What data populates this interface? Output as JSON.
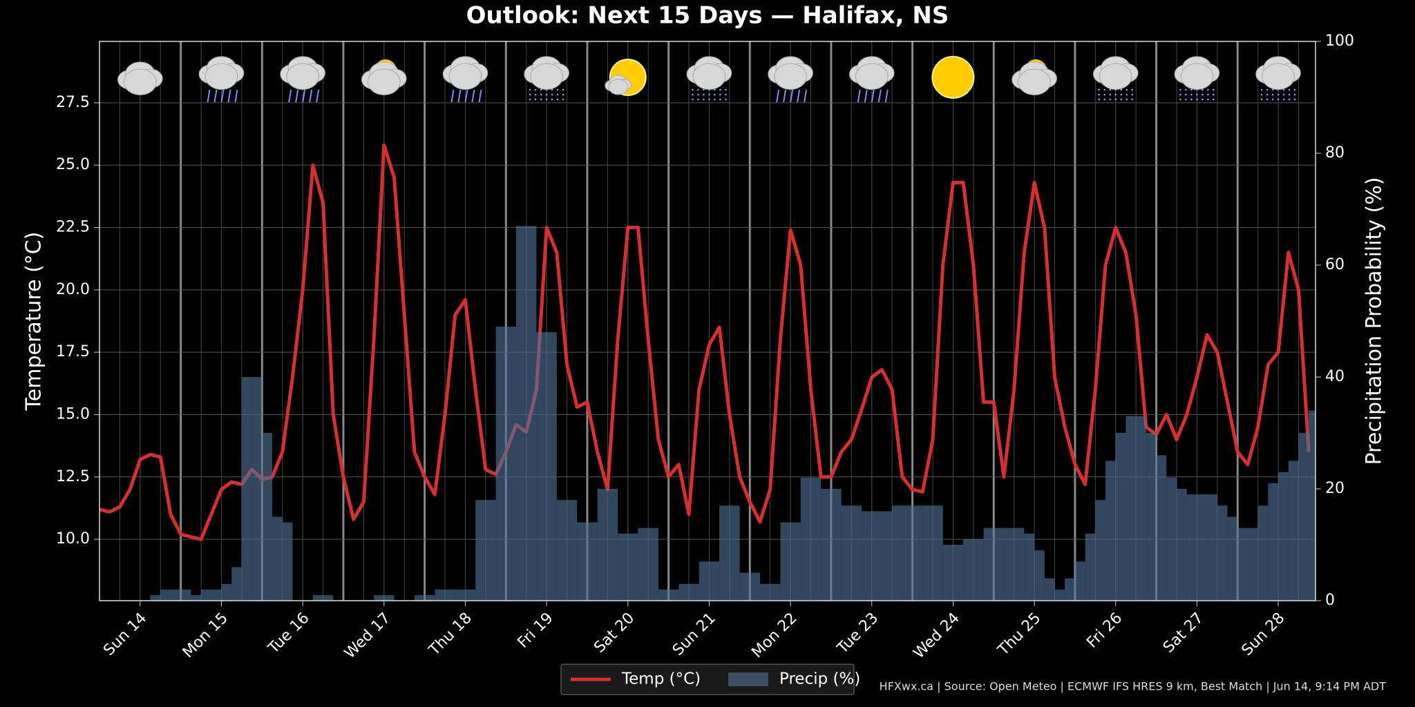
{
  "chart_data": {
    "type": "line",
    "title": "Outlook: Next 15 Days — Halifax, NS",
    "y_label": "Temperature (°C)",
    "y2_label": "Precipitation Probability (%)",
    "note": "HFXwx.ca | Source: Open Meteo | ECMWF IFS HRES 9 km, Best Match | Jun 14, 9:14 PM ADT",
    "legend": "bottom",
    "grid": true,
    "xlim": [
      0,
      359
    ],
    "xticks": [
      {
        "value": 12,
        "label": "Sun 14"
      },
      {
        "value": 36,
        "label": "Mon 15"
      },
      {
        "value": 60,
        "label": "Tue 16"
      },
      {
        "value": 84,
        "label": "Wed 17"
      },
      {
        "value": 108,
        "label": "Thu 18"
      },
      {
        "value": 132,
        "label": "Fri 19"
      },
      {
        "value": 156,
        "label": "Sat 20"
      },
      {
        "value": 180,
        "label": "Sun 21"
      },
      {
        "value": 204,
        "label": "Mon 22"
      },
      {
        "value": 228,
        "label": "Tue 23"
      },
      {
        "value": 252,
        "label": "Wed 24"
      },
      {
        "value": 276,
        "label": "Thu 25"
      },
      {
        "value": 300,
        "label": "Fri 26"
      },
      {
        "value": 324,
        "label": "Sat 27"
      },
      {
        "value": 348,
        "label": "Sun 28"
      }
    ],
    "ylim": [
      7.54,
      29.96
    ],
    "yticks": [
      {
        "value": 10,
        "label": "10.0"
      },
      12.5,
      {
        "value": 15,
        "label": "15.0"
      },
      17.5,
      {
        "value": 20,
        "label": "20.0"
      },
      22.5,
      {
        "value": 25,
        "label": "25.0"
      },
      27.5
    ],
    "y2lim": [
      0,
      100
    ],
    "y2ticks": [
      0,
      20,
      40,
      60,
      80,
      100
    ],
    "x": [
      0,
      3,
      6,
      9,
      12,
      15,
      18,
      21,
      24,
      27,
      30,
      33,
      36,
      39,
      42,
      45,
      48,
      51,
      54,
      57,
      60,
      63,
      66,
      69,
      72,
      75,
      78,
      81,
      84,
      87,
      90,
      93,
      96,
      99,
      102,
      105,
      108,
      111,
      114,
      117,
      120,
      123,
      126,
      129,
      132,
      135,
      138,
      141,
      144,
      147,
      150,
      153,
      156,
      159,
      162,
      165,
      168,
      171,
      174,
      177,
      180,
      183,
      186,
      189,
      192,
      195,
      198,
      201,
      204,
      207,
      210,
      213,
      216,
      219,
      222,
      225,
      228,
      231,
      234,
      237,
      240,
      243,
      246,
      249,
      252,
      255,
      258,
      261,
      264,
      267,
      270,
      273,
      276,
      279,
      282,
      285,
      288,
      291,
      294,
      297,
      300,
      303,
      306,
      309,
      312,
      315,
      318,
      321,
      324,
      327,
      330,
      333,
      336,
      339,
      342,
      345,
      348,
      351,
      354,
      357
    ],
    "series": [
      {
        "name": "Temp (°C)",
        "type": "line",
        "color": "#d62f2f",
        "values": [
          11.2,
          11.1,
          11.3,
          12.0,
          13.2,
          13.4,
          13.3,
          11.0,
          10.2,
          10.1,
          10.0,
          11.0,
          12.0,
          12.3,
          12.2,
          12.8,
          12.4,
          12.5,
          13.5,
          16.5,
          20.0,
          25.0,
          23.5,
          15.0,
          12.5,
          10.8,
          11.5,
          18.0,
          25.8,
          24.5,
          19.0,
          13.5,
          12.5,
          11.8,
          15.0,
          19.0,
          19.6,
          16.0,
          12.8,
          12.6,
          13.5,
          14.6,
          14.3,
          16.0,
          22.5,
          21.5,
          17.0,
          15.3,
          15.5,
          13.5,
          12.0,
          18.0,
          22.5,
          22.5,
          18.0,
          14.0,
          12.5,
          13.0,
          11.0,
          16.0,
          17.8,
          18.5,
          15.0,
          12.5,
          11.5,
          10.7,
          12.0,
          18.0,
          22.4,
          21.0,
          16.0,
          12.5,
          12.5,
          13.5,
          14.0,
          15.2,
          16.5,
          16.8,
          16.0,
          12.5,
          12.0,
          11.9,
          14.0,
          21.0,
          24.3,
          24.3,
          21.0,
          15.5,
          15.5,
          12.5,
          16.0,
          21.5,
          24.3,
          22.5,
          16.5,
          14.5,
          13.0,
          12.2,
          16.0,
          21.0,
          22.5,
          21.5,
          19.0,
          14.5,
          14.2,
          15.0,
          14.0,
          15.0,
          16.5,
          18.2,
          17.5,
          15.5,
          13.5,
          13.0,
          14.5,
          17.0,
          17.5,
          21.5,
          20.0,
          13.5
        ]
      },
      {
        "name": "Precip (%)",
        "type": "bar",
        "axis": "y2",
        "color": "#4d7397",
        "values": [
          0,
          0,
          0,
          0,
          0,
          1,
          2,
          2,
          2,
          1,
          2,
          2,
          3,
          6,
          40,
          40,
          30,
          15,
          14,
          0,
          0,
          1,
          1,
          0,
          0,
          0,
          0,
          1,
          1,
          0,
          0,
          1,
          1,
          2,
          2,
          2,
          2,
          18,
          18,
          49,
          49,
          67,
          67,
          48,
          48,
          18,
          18,
          14,
          14,
          20,
          20,
          12,
          12,
          13,
          13,
          2,
          2,
          3,
          3,
          7,
          7,
          17,
          17,
          5,
          5,
          3,
          3,
          14,
          14,
          22,
          22,
          20,
          20,
          17,
          17,
          16,
          16,
          16,
          17,
          17,
          17,
          17,
          17,
          10,
          10,
          11,
          11,
          13,
          13,
          13,
          13,
          12,
          9,
          4,
          2,
          4,
          7,
          12,
          18,
          25,
          30,
          33,
          33,
          30,
          26,
          22,
          20,
          19,
          19,
          19,
          17,
          15,
          13,
          13,
          17,
          21,
          23,
          25,
          30,
          34
        ]
      }
    ]
  }
}
